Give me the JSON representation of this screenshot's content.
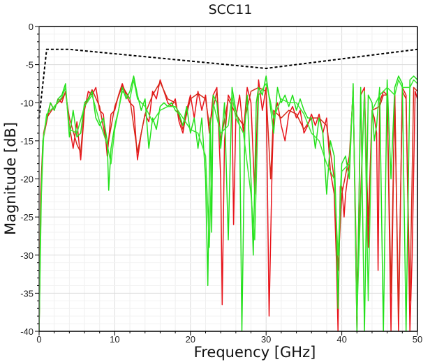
{
  "chart_data": {
    "type": "line",
    "title": "SCC11",
    "xlabel": "Frequency [GHz]",
    "ylabel": "Magnitude [dB]",
    "xlim": [
      0,
      50
    ],
    "ylim": [
      -40,
      0
    ],
    "xticks": [
      "0",
      "10",
      "20",
      "30",
      "40",
      "50"
    ],
    "yticks": [
      "0",
      "-5",
      "-10",
      "-15",
      "-20",
      "-25",
      "-30",
      "-35",
      "-40"
    ],
    "grid": true,
    "legend": "none",
    "mask": {
      "color": "#000000",
      "style": "dashed",
      "x": [
        0,
        1,
        4,
        30,
        50
      ],
      "y": [
        -12,
        -3,
        -3,
        -5.5,
        -3
      ]
    },
    "series": [
      {
        "color": "#e8141b",
        "x": [
          0,
          0.2,
          0.5,
          1,
          1.5,
          2,
          2.5,
          3,
          3.5,
          4,
          4.5,
          5,
          5.5,
          6,
          6.5,
          7,
          7.5,
          8,
          8.5,
          9,
          9.5,
          10,
          10.5,
          11,
          11.5,
          12,
          12.5,
          13,
          13.5,
          14,
          14.5,
          15,
          15.5,
          16,
          16.5,
          17,
          17.5,
          18,
          18.5,
          19,
          19.5,
          20,
          20.5,
          21,
          21.5,
          22,
          22.5,
          23,
          23.5,
          24,
          24.2,
          24.5,
          25,
          25.5,
          25.7,
          26,
          26.5,
          27,
          27.5,
          28,
          28.5,
          29,
          29.5,
          30,
          30.4,
          30.8,
          31,
          31.5,
          32,
          32.5,
          33,
          33.5,
          34,
          34.5,
          35,
          35.5,
          36,
          36.5,
          37,
          37.5,
          38,
          38.5,
          39,
          39.3,
          39.5,
          39.8,
          40,
          40.3,
          40.5,
          41,
          41.5,
          42,
          42.5,
          43,
          43.5,
          44,
          44.3,
          44.6,
          44.8,
          45,
          45.5,
          46,
          46.5,
          47,
          47.5,
          48,
          48.5,
          49,
          49.3,
          49.7,
          50
        ],
        "y": [
          -40,
          -22,
          -15,
          -12.5,
          -10,
          -11,
          -9.5,
          -10,
          -8.5,
          -13,
          -16,
          -12.5,
          -17.5,
          -11,
          -8.5,
          -9,
          -8,
          -11,
          -11.5,
          -17,
          -11.5,
          -11,
          -9,
          -7.5,
          -9,
          -10,
          -10.5,
          -17.5,
          -14,
          -11.5,
          -12.5,
          -8.5,
          -9.5,
          -7,
          -8.5,
          -10,
          -10.5,
          -9.5,
          -12.5,
          -14,
          -11,
          -9,
          -12,
          -8.5,
          -11,
          -9,
          -14,
          -9,
          -8,
          -20,
          -36.5,
          -15,
          -9,
          -10,
          -26,
          -12,
          -9,
          -14,
          -8,
          -10,
          -22,
          -7,
          -11,
          -8,
          -38,
          -18,
          -12,
          -10,
          -13,
          -15,
          -11.5,
          -10.5,
          -12,
          -11,
          -14,
          -13,
          -11.5,
          -13,
          -11.5,
          -14,
          -12,
          -19,
          -22,
          -31,
          -40,
          -21,
          -21,
          -25,
          -22,
          -18,
          -8,
          -40,
          -9,
          -8,
          -29,
          -11,
          -12,
          -14,
          -32,
          -10,
          -8.5,
          -9,
          -40,
          -8.5,
          -40,
          -8,
          -9,
          -40,
          -30,
          -8.5,
          -9.5
        ]
      },
      {
        "color": "#d42a1a",
        "x": [
          0,
          0.3,
          0.6,
          1,
          2,
          3,
          3.5,
          4,
          5,
          5.5,
          6,
          7,
          8,
          9,
          10,
          11,
          12,
          13,
          14,
          15,
          16,
          17,
          18,
          19,
          20,
          21,
          22,
          22.5,
          23.5,
          24,
          25,
          26,
          27,
          28,
          29,
          30,
          30.6,
          31,
          32,
          33,
          34,
          35,
          36,
          37,
          38,
          39,
          39.5,
          40,
          41,
          41.5,
          42,
          43,
          43.5,
          44,
          45,
          45.5,
          46,
          46.5,
          47,
          47.5,
          48,
          48.5,
          49,
          49.5,
          50
        ],
        "y": [
          -40,
          -20,
          -14,
          -12,
          -10.5,
          -9.5,
          -8.7,
          -12,
          -15.5,
          -16.5,
          -10.5,
          -8.3,
          -10.5,
          -16,
          -10.5,
          -7.8,
          -9.5,
          -16.5,
          -11.5,
          -9,
          -7.3,
          -9.5,
          -10,
          -13.5,
          -9.5,
          -8.8,
          -9.5,
          -13,
          -8.5,
          -15,
          -9.5,
          -11.5,
          -13,
          -8.5,
          -8,
          -8.5,
          -20,
          -11,
          -12,
          -11,
          -11.5,
          -13.5,
          -12,
          -12,
          -13,
          -20,
          -32,
          -22,
          -17,
          -8.5,
          -35,
          -8.5,
          -26,
          -11,
          -10.5,
          -9,
          -9,
          -35,
          -9,
          -38,
          -8.5,
          -9.5,
          -36,
          -8,
          -8.5
        ]
      },
      {
        "color": "#22e01a",
        "x": [
          0,
          0.2,
          0.5,
          1,
          1.5,
          2,
          2.5,
          3,
          3.5,
          4,
          4.5,
          5,
          5.5,
          6,
          6.5,
          7,
          7.5,
          8,
          8.5,
          9,
          9.2,
          9.5,
          10,
          10.5,
          11,
          11.5,
          12,
          12.5,
          13,
          13.5,
          14,
          14.5,
          15,
          15.5,
          16,
          16.5,
          17,
          17.5,
          18,
          18.5,
          19,
          19.5,
          20,
          20.5,
          21,
          21.5,
          22,
          22.3,
          22.6,
          22.8,
          23,
          23.5,
          24,
          24.5,
          25,
          25.5,
          26,
          26.5,
          26.8,
          27.2,
          27.5,
          28,
          28.3,
          28.7,
          29,
          29.5,
          30,
          30.5,
          31,
          31.5,
          32,
          32.5,
          33,
          33.5,
          34,
          34.5,
          35,
          35.5,
          36,
          36.5,
          37,
          37.5,
          38,
          38.5,
          39,
          39.3,
          39.5,
          39.8,
          40,
          40.5,
          41,
          41.5,
          42,
          42.5,
          43,
          43.5,
          44,
          44.3,
          44.6,
          45,
          45.5,
          46,
          46.5,
          47,
          47.5,
          48,
          48.5,
          49,
          49.5,
          50
        ],
        "y": [
          -40,
          -25,
          -15,
          -12,
          -10,
          -11,
          -9.5,
          -9,
          -7.5,
          -14.5,
          -11,
          -14.5,
          -14,
          -10,
          -9.5,
          -8.5,
          -12,
          -13,
          -12,
          -15,
          -21.5,
          -16,
          -13,
          -11,
          -8,
          -9.5,
          -8.5,
          -6.5,
          -9,
          -11,
          -9.5,
          -16,
          -12,
          -13.5,
          -10.5,
          -10,
          -10.5,
          -10,
          -11,
          -11.5,
          -13,
          -10.5,
          -14,
          -12,
          -16,
          -12,
          -20,
          -34,
          -12,
          -27,
          -9,
          -10,
          -16,
          -10,
          -28,
          -8,
          -11,
          -13,
          -40,
          -13,
          -9,
          -20,
          -30,
          -10,
          -8,
          -9,
          -6.5,
          -10,
          -14,
          -8,
          -10,
          -9,
          -10.5,
          -9,
          -11,
          -9.5,
          -11,
          -12,
          -12,
          -16,
          -12,
          -14,
          -22,
          -15,
          -17,
          -26,
          -37,
          -22,
          -18,
          -17,
          -20,
          -7.5,
          -40,
          -8,
          -40,
          -9,
          -10,
          -15,
          -13,
          -8,
          -40,
          -7,
          -20,
          -8,
          -6.5,
          -7.5,
          -40,
          -7,
          -6.5,
          -7
        ]
      },
      {
        "color": "#3ae830",
        "x": [
          0,
          0.3,
          0.6,
          1,
          2,
          3,
          3.5,
          4,
          5,
          6,
          7,
          8,
          9,
          9.5,
          10,
          11,
          12,
          12.5,
          13,
          14,
          15,
          16,
          17,
          18,
          19,
          20,
          21,
          22,
          22.5,
          23,
          24,
          25,
          25.5,
          26,
          27,
          28,
          28.5,
          29,
          30,
          30.5,
          31,
          32,
          33,
          34,
          35,
          36,
          37,
          38,
          39,
          39.5,
          40,
          41,
          41.5,
          42,
          43,
          43.5,
          44,
          45,
          46,
          47,
          47.5,
          48,
          49,
          49.5,
          50
        ],
        "y": [
          -40,
          -22,
          -14.5,
          -11.5,
          -10.5,
          -9.3,
          -8,
          -13.5,
          -14,
          -10.5,
          -9,
          -12.5,
          -15.5,
          -18,
          -13.5,
          -8.5,
          -9.5,
          -7,
          -9.5,
          -10.5,
          -12.5,
          -11,
          -10.5,
          -10.5,
          -12,
          -13.5,
          -14,
          -17,
          -29,
          -10,
          -14,
          -13,
          -9,
          -12,
          -14,
          -22,
          -28,
          -9,
          -7.5,
          -9.5,
          -12,
          -9.5,
          -10,
          -10,
          -11.5,
          -14,
          -15,
          -18,
          -20,
          -30,
          -19,
          -18,
          -8,
          -38,
          -8.5,
          -36,
          -11,
          -9,
          -8,
          -9,
          -7,
          -8,
          -8,
          -7,
          -7.5
        ]
      }
    ]
  }
}
